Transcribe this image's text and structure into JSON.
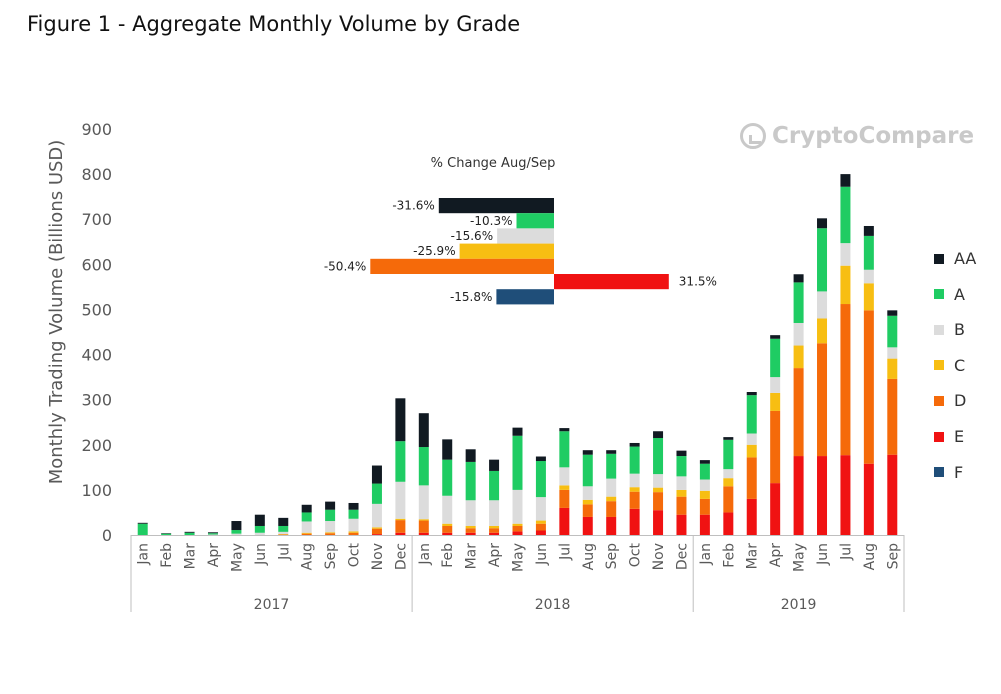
{
  "title": "Figure 1 - Aggregate Monthly Volume by Grade",
  "watermark": "CryptoCompare",
  "inset_title": "% Change Aug/Sep",
  "colors": {
    "AA": "#111a22",
    "A": "#1fcc63",
    "B": "#dcdcdc",
    "C": "#f7be12",
    "D": "#f56a0a",
    "E": "#f01212",
    "F": "#1f4e79",
    "axis": "#bfbfbf",
    "text": "#595959"
  },
  "chart_data": [
    {
      "type": "bar",
      "stacked": true,
      "title": "Figure 1 - Aggregate Monthly Volume by Grade",
      "ylabel": "Monthly Trading Volume (Billions USD)",
      "xlabel": "",
      "ylim": [
        0,
        900
      ],
      "yticks": [
        0,
        100,
        200,
        300,
        400,
        500,
        600,
        700,
        800,
        900
      ],
      "grid": false,
      "legend": "right",
      "categories": [
        "Jan",
        "Feb",
        "Mar",
        "Apr",
        "May",
        "Jun",
        "Jul",
        "Aug",
        "Sep",
        "Oct",
        "Nov",
        "Dec",
        "Jan",
        "Feb",
        "Mar",
        "Apr",
        "May",
        "Jun",
        "Jul",
        "Aug",
        "Sep",
        "Oct",
        "Nov",
        "Dec",
        "Jan",
        "Feb",
        "Mar",
        "Apr",
        "May",
        "Jun",
        "Jul",
        "Aug",
        "Sep"
      ],
      "year_groups": [
        {
          "label": "2017",
          "count": 12
        },
        {
          "label": "2018",
          "count": 12
        },
        {
          "label": "2019",
          "count": 9
        }
      ],
      "series": [
        {
          "name": "E",
          "values": [
            0,
            0,
            0,
            0,
            0,
            0,
            0,
            0,
            0,
            0,
            2,
            5,
            5,
            5,
            5,
            5,
            8,
            10,
            60,
            40,
            40,
            58,
            55,
            45,
            45,
            50,
            80,
            115,
            175,
            175,
            177,
            158,
            178
          ]
        },
        {
          "name": "D",
          "values": [
            0,
            0,
            0,
            0,
            0,
            0,
            1,
            3,
            4,
            5,
            12,
            28,
            27,
            15,
            10,
            10,
            12,
            15,
            40,
            28,
            35,
            38,
            40,
            40,
            35,
            58,
            92,
            160,
            195,
            250,
            335,
            340,
            168
          ]
        },
        {
          "name": "C",
          "values": [
            0,
            0,
            0,
            0,
            0,
            0,
            1,
            2,
            2,
            3,
            3,
            3,
            3,
            5,
            5,
            5,
            5,
            7,
            10,
            10,
            10,
            10,
            10,
            15,
            18,
            18,
            28,
            40,
            50,
            55,
            85,
            60,
            45
          ]
        },
        {
          "name": "B",
          "values": [
            0,
            0,
            0,
            1,
            3,
            5,
            5,
            25,
            25,
            28,
            52,
            82,
            75,
            62,
            57,
            57,
            75,
            52,
            40,
            30,
            40,
            30,
            30,
            30,
            25,
            20,
            25,
            35,
            50,
            60,
            50,
            30,
            25
          ]
        },
        {
          "name": "A",
          "values": [
            25,
            3,
            5,
            3,
            8,
            15,
            13,
            20,
            25,
            20,
            45,
            90,
            85,
            80,
            85,
            65,
            120,
            80,
            80,
            70,
            55,
            60,
            80,
            45,
            35,
            65,
            85,
            85,
            90,
            140,
            125,
            75,
            70
          ]
        },
        {
          "name": "AA",
          "values": [
            2,
            1,
            2,
            2,
            20,
            25,
            18,
            17,
            18,
            15,
            40,
            95,
            75,
            45,
            28,
            25,
            18,
            10,
            7,
            10,
            8,
            8,
            15,
            12,
            8,
            6,
            7,
            8,
            18,
            22,
            28,
            22,
            12
          ]
        },
        {
          "name": "F",
          "values": [
            0,
            0,
            0,
            0,
            0,
            0,
            0,
            0,
            0,
            0,
            0,
            0,
            0,
            0,
            0,
            0,
            0,
            0,
            0,
            0,
            0,
            0,
            0,
            0,
            0,
            0,
            0,
            0,
            0,
            0,
            0,
            0,
            0
          ]
        }
      ]
    },
    {
      "type": "bar",
      "orientation": "horizontal",
      "title": "% Change Aug/Sep",
      "categories": [
        "AA",
        "A",
        "B",
        "C",
        "D",
        "E",
        "F"
      ],
      "values": [
        -31.6,
        -10.3,
        -15.6,
        -25.9,
        -50.4,
        31.5,
        -15.8
      ],
      "labels": [
        "-31.6%",
        "-10.3%",
        "-15.6%",
        "-25.9%",
        "-50.4%",
        "31.5%",
        "-15.8%"
      ]
    }
  ]
}
